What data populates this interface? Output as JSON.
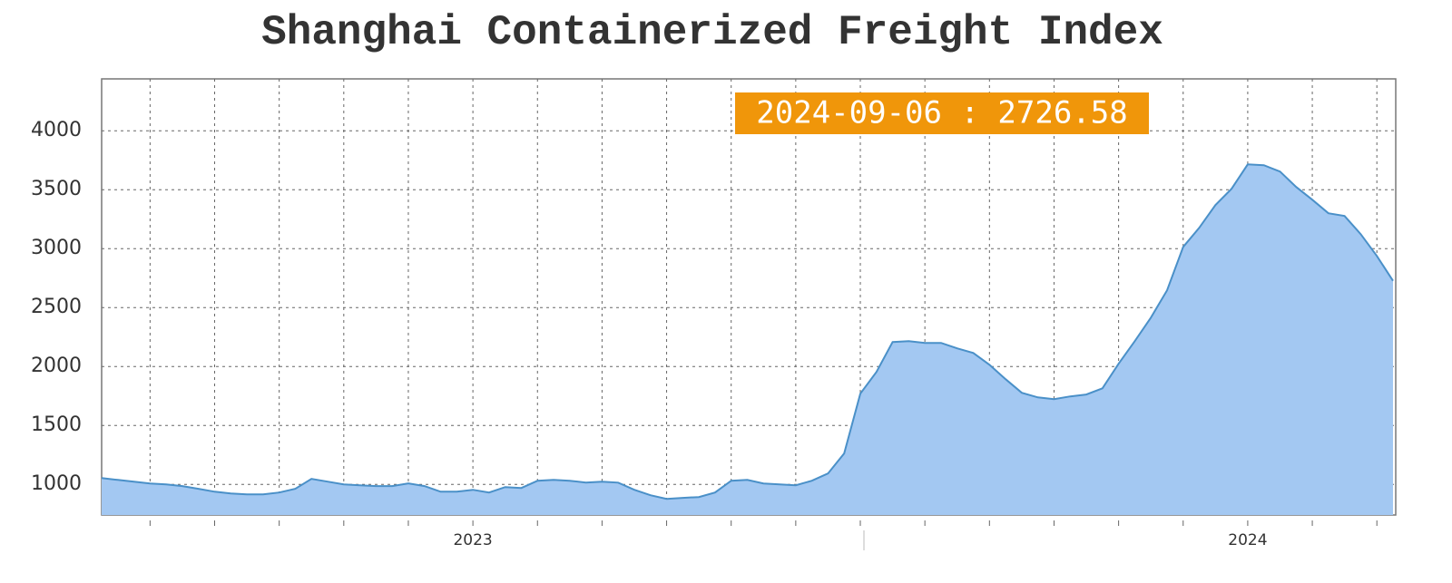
{
  "chart_data": {
    "type": "area",
    "title": "Shanghai Containerized Freight Index",
    "annotation": "2024-09-06 : 2726.58",
    "categories": [
      null,
      null,
      null,
      null,
      null,
      null,
      null,
      null,
      null,
      null,
      null,
      null,
      null,
      null,
      null,
      null,
      null,
      null,
      null,
      null,
      null,
      null,
      null,
      "2023",
      null,
      null,
      null,
      null,
      null,
      null,
      null,
      null,
      null,
      null,
      null,
      null,
      null,
      null,
      null,
      null,
      null,
      null,
      null,
      null,
      null,
      null,
      null,
      null,
      null,
      null,
      null,
      null,
      null,
      null,
      null,
      null,
      null,
      null,
      null,
      null,
      null,
      null,
      null,
      null,
      null,
      null,
      null,
      null,
      null,
      null,
      null,
      "2024",
      null,
      null,
      null,
      null,
      null,
      null,
      null,
      null,
      null
    ],
    "values": [
      1054,
      1038,
      1023,
      1008,
      1000,
      985,
      962,
      938,
      923,
      915,
      915,
      931,
      962,
      1046,
      1023,
      1000,
      992,
      985,
      985,
      1008,
      985,
      938,
      938,
      954,
      931,
      977,
      969,
      1031,
      1038,
      1031,
      1015,
      1023,
      1015,
      954,
      908,
      877,
      885,
      892,
      931,
      1031,
      1038,
      1008,
      1000,
      992,
      1031,
      1092,
      1262,
      1769,
      1954,
      2208,
      2215,
      2200,
      2200,
      2154,
      2115,
      2015,
      1892,
      1777,
      1738,
      1723,
      1746,
      1762,
      1815,
      2023,
      2215,
      2415,
      2646,
      3015,
      3177,
      3369,
      3508,
      3715,
      3708,
      3654,
      3523,
      3415,
      3300,
      3277,
      3123,
      2938,
      2726.58
    ],
    "color": "#a3c8f2",
    "line_color": "#4a90c8",
    "annotation_color": "#f0960a",
    "ylim": [
      740,
      4440
    ],
    "yticks": [
      1000,
      1500,
      2000,
      2500,
      3000,
      3500,
      4000
    ],
    "grid": true
  }
}
